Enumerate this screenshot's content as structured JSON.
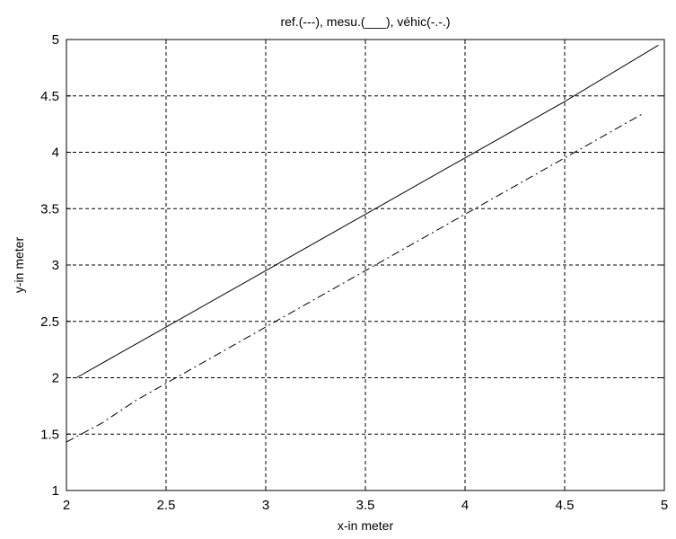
{
  "chart_data": {
    "type": "line",
    "title": "ref.(---), mesu.(___), véhic(-.-.)",
    "xlabel": "x-in meter",
    "ylabel": "y-in meter",
    "xlim": [
      2,
      5
    ],
    "ylim": [
      1,
      5
    ],
    "xticks": [
      "2",
      "2.5",
      "3",
      "3.5",
      "4",
      "4.5",
      "5"
    ],
    "yticks": [
      "1",
      "1.5",
      "2",
      "2.5",
      "3",
      "3.5",
      "4",
      "4.5",
      "5"
    ],
    "grid": true,
    "grid_style": "dashed",
    "series": [
      {
        "style": "solid",
        "color": "#000000",
        "x": [
          2.05,
          2.5,
          3.0,
          3.5,
          4.0,
          4.5,
          4.97
        ],
        "y": [
          2.0,
          2.45,
          2.95,
          3.45,
          3.95,
          4.45,
          4.95
        ]
      },
      {
        "style": "dashdot",
        "color": "#000000",
        "x": [
          2.0,
          2.18,
          2.35,
          2.5,
          2.75,
          3.0,
          3.25,
          3.5,
          3.75,
          4.0,
          4.25,
          4.5,
          4.7,
          4.9
        ],
        "y": [
          1.43,
          1.6,
          1.8,
          1.95,
          2.2,
          2.45,
          2.7,
          2.95,
          3.2,
          3.45,
          3.7,
          3.95,
          4.15,
          4.35
        ]
      }
    ]
  }
}
